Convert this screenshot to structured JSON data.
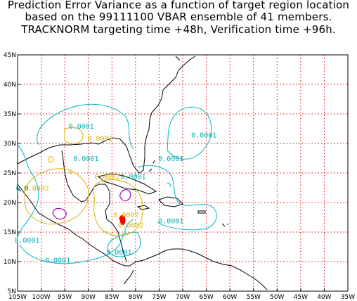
{
  "title": {
    "line1": "Prediction Error Variance as a function of target region location",
    "line2": "based on the 99111100 VBAR ensemble of 41 members.",
    "line3": "TRACKNORM targeting time +48h, Verification time +96h."
  },
  "axes": {
    "x_ticks": [
      "105W",
      "100W",
      "95W",
      "90W",
      "85W",
      "80W",
      "75W",
      "70W",
      "65W",
      "60W",
      "55W",
      "50W",
      "45W",
      "40W",
      "35W"
    ],
    "y_ticks": [
      "45N",
      "40N",
      "35N",
      "30N",
      "25N",
      "20N",
      "15N",
      "10N",
      "5N"
    ],
    "lon_range": [
      -105,
      -35
    ],
    "lat_range": [
      5,
      45
    ],
    "grid": "dotted"
  },
  "contour_labels": [
    {
      "text": "0.0001",
      "lon": -91.5,
      "lat": 32.5,
      "color": "#00b0b8"
    },
    {
      "text": "0.0001",
      "lon": -65.5,
      "lat": 31.0,
      "color": "#00b0b8"
    },
    {
      "text": "0.0001",
      "lon": -90.5,
      "lat": 27.0,
      "color": "#00b0b8"
    },
    {
      "text": "0.0001",
      "lon": -72.5,
      "lat": 27.0,
      "color": "#00b0b8"
    },
    {
      "text": "0.0001",
      "lon": -80.5,
      "lat": 24.0,
      "color": "#00b0b8"
    },
    {
      "text": "0.0001",
      "lon": -72.5,
      "lat": 16.5,
      "color": "#00b0b8"
    },
    {
      "text": "0.0001",
      "lon": -103.0,
      "lat": 13.2,
      "color": "#00b0b8"
    },
    {
      "text": "0.0001",
      "lon": -96.5,
      "lat": 9.8,
      "color": "#00b0b8"
    },
    {
      "text": "0.0001",
      "lon": -83.5,
      "lat": 11.2,
      "color": "#00b0b8"
    },
    {
      "text": "0.0",
      "lon": -104.0,
      "lat": 22.0,
      "color": "#00b0b8"
    },
    {
      "text": "0.0002",
      "lon": -87.5,
      "lat": 30.5,
      "color": "#d8b400"
    },
    {
      "text": "0.0002",
      "lon": -86.0,
      "lat": 24.0,
      "color": "#d8b400"
    },
    {
      "text": "0.0002",
      "lon": -101.0,
      "lat": 22.0,
      "color": "#d8b400"
    },
    {
      "text": "0.0002",
      "lon": -82.0,
      "lat": 17.5,
      "color": "#d8b400"
    },
    {
      "text": "0.0002",
      "lon": -81.0,
      "lat": 15.8,
      "color": "#d8b400"
    }
  ]
}
